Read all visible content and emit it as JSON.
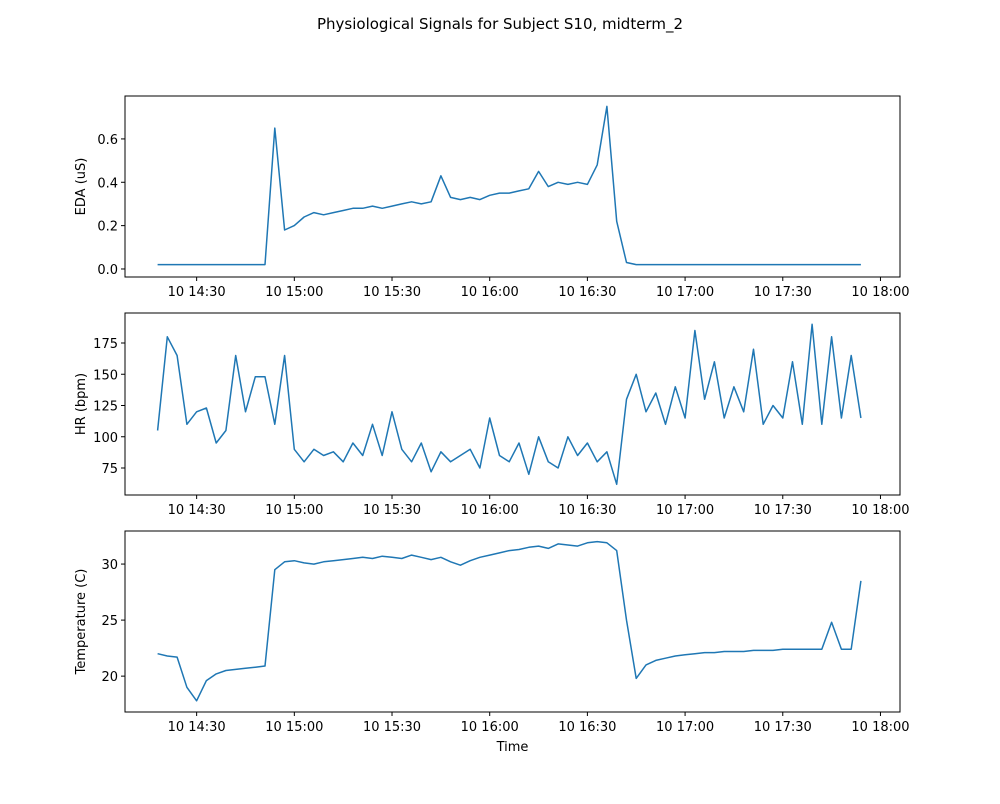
{
  "title": "Physiological Signals for Subject S10, midterm_2",
  "chart_data": [
    {
      "type": "line",
      "ylabel": "EDA (uS)",
      "color": "#1f77b4",
      "x": [
        "10 14:18",
        "10 14:21",
        "10 14:24",
        "10 14:27",
        "10 14:30",
        "10 14:33",
        "10 14:36",
        "10 14:39",
        "10 14:42",
        "10 14:45",
        "10 14:48",
        "10 14:51",
        "10 14:54",
        "10 14:57",
        "10 15:00",
        "10 15:03",
        "10 15:06",
        "10 15:09",
        "10 15:12",
        "10 15:15",
        "10 15:18",
        "10 15:21",
        "10 15:24",
        "10 15:27",
        "10 15:30",
        "10 15:33",
        "10 15:36",
        "10 15:39",
        "10 15:42",
        "10 15:45",
        "10 15:48",
        "10 15:51",
        "10 15:54",
        "10 15:57",
        "10 16:00",
        "10 16:03",
        "10 16:06",
        "10 16:09",
        "10 16:12",
        "10 16:15",
        "10 16:18",
        "10 16:21",
        "10 16:24",
        "10 16:27",
        "10 16:30",
        "10 16:33",
        "10 16:36",
        "10 16:39",
        "10 16:42",
        "10 16:45",
        "10 16:48",
        "10 16:51",
        "10 16:54",
        "10 16:57",
        "10 17:00",
        "10 17:03",
        "10 17:06",
        "10 17:09",
        "10 17:12",
        "10 17:15",
        "10 17:18",
        "10 17:21",
        "10 17:24",
        "10 17:27",
        "10 17:30",
        "10 17:33",
        "10 17:36",
        "10 17:39",
        "10 17:42",
        "10 17:45",
        "10 17:48",
        "10 17:51",
        "10 17:54"
      ],
      "values": [
        0.02,
        0.02,
        0.02,
        0.02,
        0.02,
        0.02,
        0.02,
        0.02,
        0.02,
        0.02,
        0.02,
        0.02,
        0.65,
        0.18,
        0.2,
        0.24,
        0.26,
        0.25,
        0.26,
        0.27,
        0.28,
        0.28,
        0.29,
        0.28,
        0.29,
        0.3,
        0.31,
        0.3,
        0.31,
        0.43,
        0.33,
        0.32,
        0.33,
        0.32,
        0.34,
        0.35,
        0.35,
        0.36,
        0.37,
        0.45,
        0.38,
        0.4,
        0.39,
        0.4,
        0.39,
        0.48,
        0.75,
        0.22,
        0.03,
        0.02,
        0.02,
        0.02,
        0.02,
        0.02,
        0.02,
        0.02,
        0.02,
        0.02,
        0.02,
        0.02,
        0.02,
        0.02,
        0.02,
        0.02,
        0.02,
        0.02,
        0.02,
        0.02,
        0.02,
        0.02,
        0.02,
        0.02,
        0.02
      ],
      "xlim": [
        "10 14:08",
        "10 18:06"
      ],
      "xticks": [
        "10 14:30",
        "10 15:00",
        "10 15:30",
        "10 16:00",
        "10 16:30",
        "10 17:00",
        "10 17:30",
        "10 18:00"
      ],
      "ylim": [
        -0.037,
        0.798
      ],
      "yticks": [
        {
          "value": 0,
          "label": "0.0"
        },
        0.2,
        0.4,
        0.6
      ]
    },
    {
      "type": "line",
      "ylabel": "HR (bpm)",
      "color": "#1f77b4",
      "x": [
        "10 14:18",
        "10 14:21",
        "10 14:24",
        "10 14:27",
        "10 14:30",
        "10 14:33",
        "10 14:36",
        "10 14:39",
        "10 14:42",
        "10 14:45",
        "10 14:48",
        "10 14:51",
        "10 14:54",
        "10 14:57",
        "10 15:00",
        "10 15:03",
        "10 15:06",
        "10 15:09",
        "10 15:12",
        "10 15:15",
        "10 15:18",
        "10 15:21",
        "10 15:24",
        "10 15:27",
        "10 15:30",
        "10 15:33",
        "10 15:36",
        "10 15:39",
        "10 15:42",
        "10 15:45",
        "10 15:48",
        "10 15:51",
        "10 15:54",
        "10 15:57",
        "10 16:00",
        "10 16:03",
        "10 16:06",
        "10 16:09",
        "10 16:12",
        "10 16:15",
        "10 16:18",
        "10 16:21",
        "10 16:24",
        "10 16:27",
        "10 16:30",
        "10 16:33",
        "10 16:36",
        "10 16:39",
        "10 16:42",
        "10 16:45",
        "10 16:48",
        "10 16:51",
        "10 16:54",
        "10 16:57",
        "10 17:00",
        "10 17:03",
        "10 17:06",
        "10 17:09",
        "10 17:12",
        "10 17:15",
        "10 17:18",
        "10 17:21",
        "10 17:24",
        "10 17:27",
        "10 17:30",
        "10 17:33",
        "10 17:36",
        "10 17:39",
        "10 17:42",
        "10 17:45",
        "10 17:48",
        "10 17:51",
        "10 17:54"
      ],
      "values": [
        105,
        180,
        165,
        110,
        120,
        123,
        95,
        105,
        165,
        120,
        148,
        148,
        110,
        165,
        90,
        80,
        90,
        85,
        88,
        80,
        95,
        85,
        110,
        85,
        120,
        90,
        80,
        95,
        72,
        88,
        80,
        85,
        90,
        75,
        115,
        85,
        80,
        95,
        70,
        100,
        80,
        75,
        100,
        85,
        95,
        80,
        88,
        62,
        130,
        150,
        120,
        135,
        110,
        140,
        115,
        185,
        130,
        160,
        115,
        140,
        120,
        170,
        110,
        125,
        115,
        160,
        110,
        190,
        110,
        180,
        115,
        165,
        115
      ],
      "xlim": [
        "10 14:08",
        "10 18:06"
      ],
      "xticks": [
        "10 14:30",
        "10 15:00",
        "10 15:30",
        "10 16:00",
        "10 16:30",
        "10 17:00",
        "10 17:30",
        "10 18:00"
      ],
      "ylim": [
        53.4,
        199
      ],
      "yticks": [
        75,
        100,
        125,
        150,
        175
      ]
    },
    {
      "type": "line",
      "ylabel": "Temperature (C)",
      "xlabel": "Time",
      "color": "#1f77b4",
      "x": [
        "10 14:18",
        "10 14:21",
        "10 14:24",
        "10 14:27",
        "10 14:30",
        "10 14:33",
        "10 14:36",
        "10 14:39",
        "10 14:42",
        "10 14:45",
        "10 14:48",
        "10 14:51",
        "10 14:54",
        "10 14:57",
        "10 15:00",
        "10 15:03",
        "10 15:06",
        "10 15:09",
        "10 15:12",
        "10 15:15",
        "10 15:18",
        "10 15:21",
        "10 15:24",
        "10 15:27",
        "10 15:30",
        "10 15:33",
        "10 15:36",
        "10 15:39",
        "10 15:42",
        "10 15:45",
        "10 15:48",
        "10 15:51",
        "10 15:54",
        "10 15:57",
        "10 16:00",
        "10 16:03",
        "10 16:06",
        "10 16:09",
        "10 16:12",
        "10 16:15",
        "10 16:18",
        "10 16:21",
        "10 16:24",
        "10 16:27",
        "10 16:30",
        "10 16:33",
        "10 16:36",
        "10 16:39",
        "10 16:42",
        "10 16:45",
        "10 16:48",
        "10 16:51",
        "10 16:54",
        "10 16:57",
        "10 17:00",
        "10 17:03",
        "10 17:06",
        "10 17:09",
        "10 17:12",
        "10 17:15",
        "10 17:18",
        "10 17:21",
        "10 17:24",
        "10 17:27",
        "10 17:30",
        "10 17:33",
        "10 17:36",
        "10 17:39",
        "10 17:42",
        "10 17:45",
        "10 17:48",
        "10 17:51",
        "10 17:54"
      ],
      "values": [
        22.0,
        21.8,
        21.7,
        19.0,
        17.8,
        19.6,
        20.2,
        20.5,
        20.6,
        20.7,
        20.8,
        20.9,
        29.5,
        30.2,
        30.3,
        30.1,
        30.0,
        30.2,
        30.3,
        30.4,
        30.5,
        30.6,
        30.5,
        30.7,
        30.6,
        30.5,
        30.8,
        30.6,
        30.4,
        30.6,
        30.2,
        29.9,
        30.3,
        30.6,
        30.8,
        31.0,
        31.2,
        31.3,
        31.5,
        31.6,
        31.4,
        31.8,
        31.7,
        31.6,
        31.9,
        32.0,
        31.9,
        31.2,
        25.0,
        19.8,
        21.0,
        21.4,
        21.6,
        21.8,
        21.9,
        22.0,
        22.1,
        22.1,
        22.2,
        22.2,
        22.2,
        22.3,
        22.3,
        22.3,
        22.4,
        22.4,
        22.4,
        22.4,
        22.4,
        24.8,
        22.4,
        22.4,
        28.5
      ],
      "xlim": [
        "10 14:08",
        "10 18:06"
      ],
      "xticks": [
        "10 14:30",
        "10 15:00",
        "10 15:30",
        "10 16:00",
        "10 16:30",
        "10 17:00",
        "10 17:30",
        "10 18:00"
      ],
      "ylim": [
        16.8,
        32.95
      ],
      "yticks": [
        20,
        25,
        30
      ]
    }
  ]
}
